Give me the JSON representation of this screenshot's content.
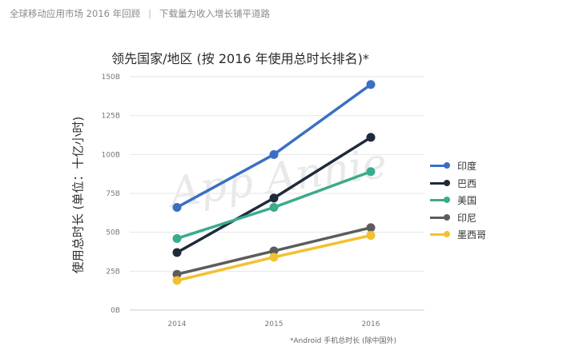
{
  "header": {
    "left": "全球移动应用市场 2016 年回顾",
    "separator": "|",
    "right": "下载量为收入增长铺平道路"
  },
  "watermark": "App Annie",
  "footnote": "*Android 手机总时长 (除中国外)",
  "chart_data": {
    "type": "line",
    "title": "领先国家/地区 (按 2016 年使用总时长排名)*",
    "ylabel": "使用总时长 (单位：十亿小时)",
    "xlabel": "",
    "x": [
      "2014",
      "2015",
      "2016"
    ],
    "ylim": [
      0,
      150
    ],
    "yticks": [
      0,
      25,
      50,
      75,
      100,
      125,
      150
    ],
    "ytick_labels": [
      "0B",
      "25B",
      "50B",
      "75B",
      "100B",
      "125B",
      "150B"
    ],
    "grid": true,
    "legend_position": "right",
    "series": [
      {
        "name": "印度",
        "color": "#3b6fc4",
        "values": [
          66,
          100,
          145
        ]
      },
      {
        "name": "巴西",
        "color": "#1f2a3a",
        "values": [
          37,
          72,
          111
        ]
      },
      {
        "name": "美国",
        "color": "#3aab8c",
        "values": [
          46,
          66,
          89
        ]
      },
      {
        "name": "印尼",
        "color": "#5c5c5c",
        "values": [
          23,
          38,
          53
        ]
      },
      {
        "name": "墨西哥",
        "color": "#f2c12e",
        "values": [
          19,
          34,
          48
        ]
      }
    ]
  }
}
